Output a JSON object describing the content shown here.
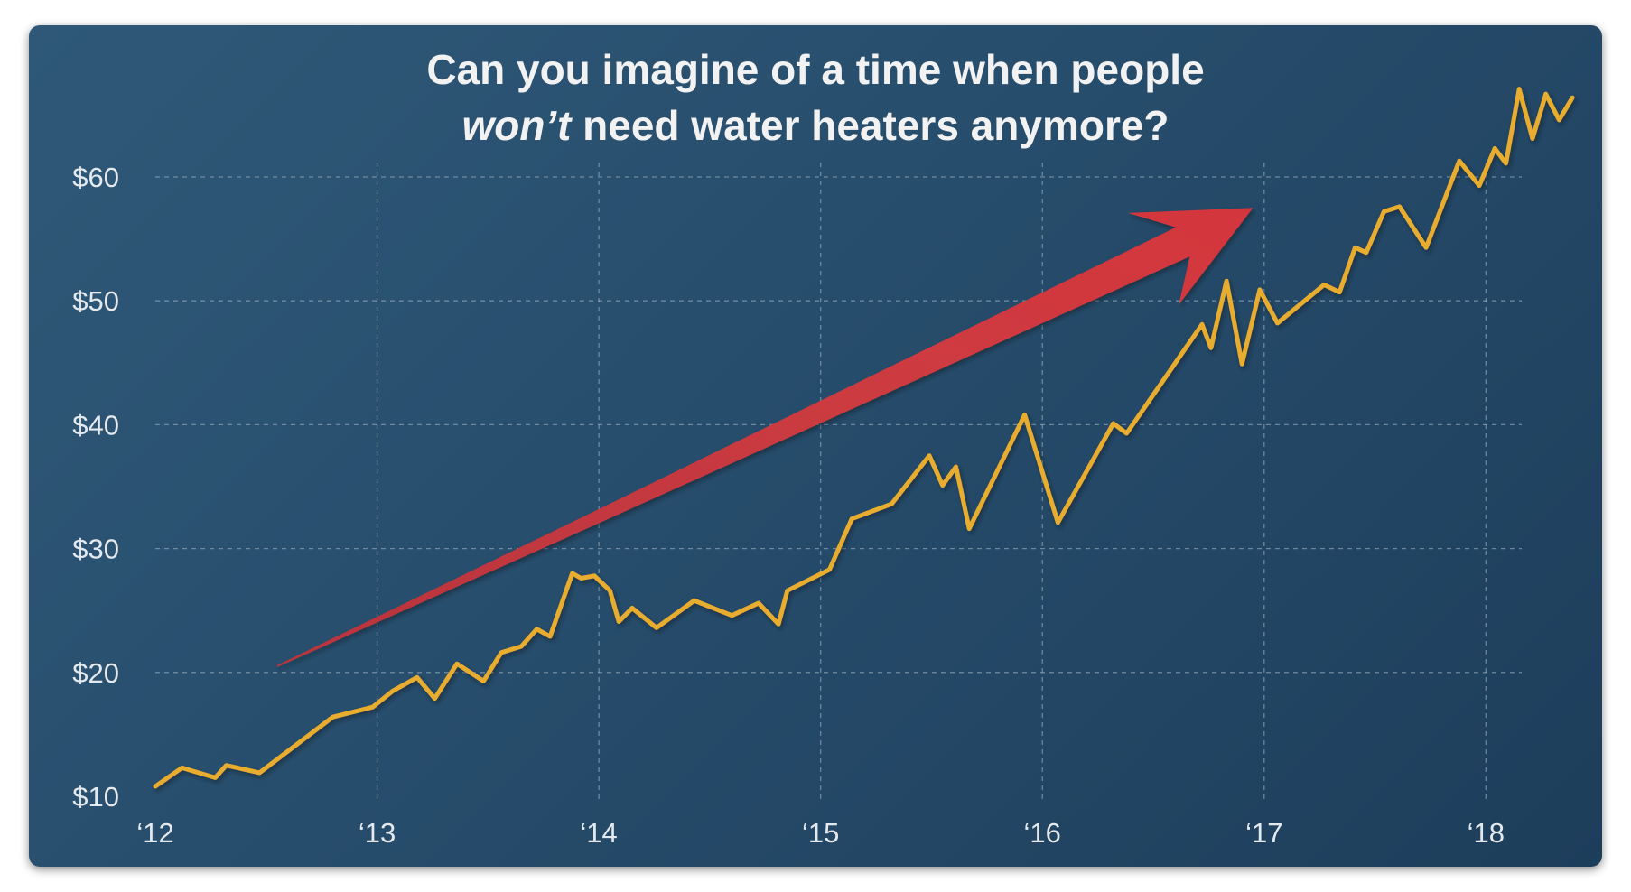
{
  "chart_data": {
    "type": "line",
    "title_line1": "Can you imagine of a time when people",
    "title_line2_emphasis": "won’t",
    "title_line2_rest": " need water heaters anymore?",
    "xlabel": "",
    "ylabel": "",
    "x_ticks": [
      {
        "value": 2012,
        "label": "‘12"
      },
      {
        "value": 2013,
        "label": "‘13"
      },
      {
        "value": 2014,
        "label": "‘14"
      },
      {
        "value": 2015,
        "label": "‘15"
      },
      {
        "value": 2016,
        "label": "‘16"
      },
      {
        "value": 2017,
        "label": "‘17"
      },
      {
        "value": 2018,
        "label": "‘18"
      }
    ],
    "y_ticks": [
      {
        "value": 10,
        "label": "$10"
      },
      {
        "value": 20,
        "label": "$20"
      },
      {
        "value": 30,
        "label": "$30"
      },
      {
        "value": 40,
        "label": "$40"
      },
      {
        "value": 50,
        "label": "$50"
      },
      {
        "value": 60,
        "label": "$60"
      }
    ],
    "xlim": [
      2012,
      2018.08
    ],
    "ylim": [
      10,
      60
    ],
    "grid": true,
    "legend": "none",
    "series": [
      {
        "color": "#e8ac2e",
        "x": [
          2012.0,
          2012.12,
          2012.27,
          2012.32,
          2012.47,
          2012.8,
          2012.98,
          2013.07,
          2013.18,
          2013.26,
          2013.36,
          2013.48,
          2013.56,
          2013.65,
          2013.72,
          2013.78,
          2013.88,
          2013.92,
          2013.98,
          2014.05,
          2014.09,
          2014.15,
          2014.26,
          2014.43,
          2014.6,
          2014.72,
          2014.81,
          2014.85,
          2015.04,
          2015.14,
          2015.32,
          2015.49,
          2015.55,
          2015.61,
          2015.67,
          2015.92,
          2016.07,
          2016.32,
          2016.38,
          2016.72,
          2016.76,
          2016.83,
          2016.9,
          2016.98,
          2017.06,
          2017.27,
          2017.34,
          2017.41,
          2017.46,
          2017.54,
          2017.61,
          2017.73,
          2017.88,
          2017.97,
          2018.04,
          2018.09,
          2018.15,
          2018.21,
          2018.27,
          2018.33,
          2018.39
        ],
        "y": [
          10.8,
          12.3,
          11.5,
          12.5,
          11.9,
          16.4,
          17.2,
          18.5,
          19.6,
          17.9,
          20.7,
          19.3,
          21.6,
          22.1,
          23.5,
          22.9,
          28.0,
          27.6,
          27.8,
          26.6,
          24.1,
          25.2,
          23.6,
          25.8,
          24.6,
          25.6,
          23.9,
          26.6,
          28.3,
          32.4,
          33.6,
          37.5,
          35.1,
          36.6,
          31.6,
          40.8,
          32.1,
          40.1,
          39.3,
          48.1,
          46.2,
          51.6,
          44.9,
          50.9,
          48.2,
          51.3,
          50.7,
          54.3,
          53.9,
          57.2,
          57.6,
          54.3,
          61.3,
          59.3,
          62.3,
          61.1,
          67.1,
          63.1,
          66.7,
          64.6,
          66.4
        ]
      }
    ],
    "annotations": [
      {
        "type": "arrow",
        "color": "#c8323c",
        "from": {
          "x": 2012.55,
          "y": 20.5
        },
        "to": {
          "x": 2016.95,
          "y": 57.5
        }
      }
    ]
  }
}
